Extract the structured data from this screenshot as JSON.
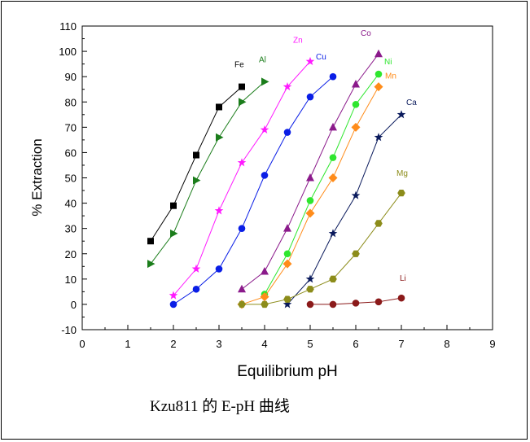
{
  "caption": "Kzu811 的 E-pH 曲线",
  "chart_data": {
    "type": "scatter",
    "title": "",
    "xlabel": "Equilibrium pH",
    "ylabel": "% Extraction",
    "xlim": [
      0,
      9
    ],
    "ylim": [
      -10,
      110
    ],
    "xticks": [
      0,
      1,
      2,
      3,
      4,
      5,
      6,
      7,
      8,
      9
    ],
    "yticks": [
      -10,
      0,
      10,
      20,
      30,
      40,
      50,
      60,
      70,
      80,
      90,
      100,
      110
    ],
    "grid": false,
    "legend": "none",
    "series": [
      {
        "name": "Fe",
        "color": "#000000",
        "marker": "square",
        "x": [
          1.5,
          2,
          2.5,
          3,
          3.5
        ],
        "y": [
          25,
          39,
          59,
          78,
          86
        ]
      },
      {
        "name": "Al",
        "color": "#1b7d1b",
        "marker": "triangle-right",
        "x": [
          1.5,
          2,
          2.5,
          3,
          3.5,
          4
        ],
        "y": [
          16,
          28,
          49,
          66,
          80,
          88
        ]
      },
      {
        "name": "Zn",
        "color": "#ff1aff",
        "marker": "star",
        "x": [
          2,
          2.5,
          3,
          3.5,
          4,
          4.5,
          5
        ],
        "y": [
          3.5,
          14,
          37,
          56,
          69,
          86,
          96
        ]
      },
      {
        "name": "Cu",
        "color": "#0a1ee6",
        "marker": "circle",
        "x": [
          2,
          2.5,
          3,
          3.5,
          4,
          4.5,
          5,
          5.5
        ],
        "y": [
          0,
          6,
          14,
          30,
          51,
          68,
          82,
          90
        ]
      },
      {
        "name": "Co",
        "color": "#8b1a8b",
        "marker": "triangle-up",
        "x": [
          3.5,
          4,
          4.5,
          5,
          5.5,
          6,
          6.5
        ],
        "y": [
          6,
          13,
          30,
          50,
          70,
          87,
          99
        ]
      },
      {
        "name": "Ni",
        "color": "#2ee62e",
        "marker": "circle",
        "x": [
          4,
          4.5,
          5,
          5.5,
          6,
          6.5
        ],
        "y": [
          4,
          20,
          41,
          58,
          79,
          91
        ]
      },
      {
        "name": "Mn",
        "color": "#ff8c1a",
        "marker": "diamond",
        "x": [
          3.5,
          4,
          4.5,
          5,
          5.5,
          6,
          6.5
        ],
        "y": [
          0,
          3,
          16,
          36,
          50,
          70,
          86
        ]
      },
      {
        "name": "Ca",
        "color": "#0a1a5c",
        "marker": "star",
        "x": [
          4.5,
          5,
          5.5,
          6,
          6.5,
          7
        ],
        "y": [
          0,
          10,
          28,
          43,
          66,
          75
        ]
      },
      {
        "name": "Mg",
        "color": "#8c8c1a",
        "marker": "hexagon",
        "x": [
          3.5,
          4,
          4.5,
          5,
          5.5,
          6,
          6.5,
          7
        ],
        "y": [
          0,
          0,
          2,
          6,
          10,
          20,
          32,
          44
        ]
      },
      {
        "name": "Li",
        "color": "#8b1a1a",
        "marker": "circle",
        "x": [
          5,
          5.5,
          6,
          6.5,
          7
        ],
        "y": [
          0,
          0,
          0.5,
          1,
          2.5
        ]
      }
    ]
  }
}
